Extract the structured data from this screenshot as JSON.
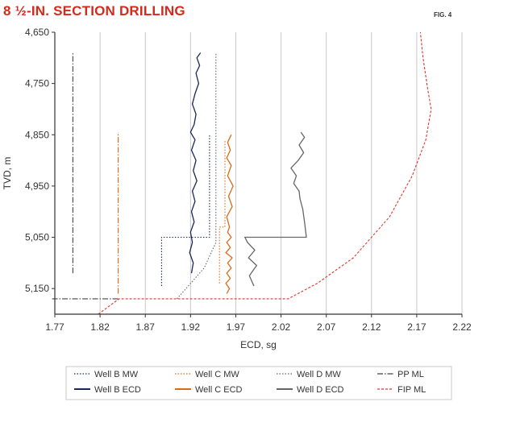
{
  "title": "8 ½-IN. SECTION DRILLING",
  "figure_label": "FIG. 4",
  "colors": {
    "title": "#d42a1c",
    "navy": "#1b2a55",
    "orange": "#d96a1a",
    "gray": "#666666",
    "red": "#e0342a",
    "dark": "#444444"
  },
  "chart_data": {
    "type": "line",
    "xlabel": "ECD, sg",
    "ylabel": "TVD, m",
    "xlim": [
      1.77,
      2.22
    ],
    "ylim": [
      4650,
      5200
    ],
    "y_inverted": true,
    "grid": "vertical",
    "x_ticks": [
      "1.77",
      "1.82",
      "1.87",
      "1.92",
      "1.97",
      "2.02",
      "2.07",
      "2.12",
      "2.17",
      "2.22"
    ],
    "y_ticks": [
      "4,650",
      "4,750",
      "4,850",
      "4,950",
      "5,050",
      "5,150"
    ],
    "legend_position": "bottom",
    "series": [
      {
        "name": "Well B MW",
        "color": "#1b2a55",
        "style": "dotted",
        "points": [
          [
            1.888,
            5145
          ],
          [
            1.888,
            5050
          ],
          [
            1.941,
            5050
          ],
          [
            1.941,
            4850
          ]
        ]
      },
      {
        "name": "Well C MW",
        "color": "#d96a1a",
        "style": "dotted",
        "points": [
          [
            1.952,
            5140
          ],
          [
            1.952,
            5030
          ],
          [
            1.958,
            5030
          ],
          [
            1.958,
            4860
          ]
        ]
      },
      {
        "name": "Well D MW",
        "color": "#666666",
        "style": "dotted",
        "points": [
          [
            1.905,
            5170
          ],
          [
            1.935,
            5110
          ],
          [
            1.948,
            5060
          ],
          [
            1.948,
            4690
          ]
        ]
      },
      {
        "name": "Well B ECD",
        "color": "#1b2a55",
        "style": "solid",
        "points": [
          [
            1.921,
            5120
          ],
          [
            1.923,
            5100
          ],
          [
            1.919,
            5080
          ],
          [
            1.922,
            5060
          ],
          [
            1.92,
            5040
          ],
          [
            1.924,
            5020
          ],
          [
            1.921,
            5000
          ],
          [
            1.925,
            4980
          ],
          [
            1.922,
            4960
          ],
          [
            1.927,
            4940
          ],
          [
            1.923,
            4920
          ],
          [
            1.926,
            4900
          ],
          [
            1.921,
            4880
          ],
          [
            1.925,
            4860
          ],
          [
            1.92,
            4845
          ],
          [
            1.924,
            4830
          ],
          [
            1.926,
            4810
          ],
          [
            1.922,
            4790
          ],
          [
            1.925,
            4770
          ],
          [
            1.929,
            4750
          ],
          [
            1.926,
            4730
          ],
          [
            1.93,
            4715
          ],
          [
            1.927,
            4700
          ],
          [
            1.931,
            4690
          ]
        ]
      },
      {
        "name": "Well C ECD",
        "color": "#d96a1a",
        "style": "solid",
        "points": [
          [
            1.96,
            5160
          ],
          [
            1.963,
            5150
          ],
          [
            1.959,
            5140
          ],
          [
            1.964,
            5130
          ],
          [
            1.96,
            5120
          ],
          [
            1.965,
            5110
          ],
          [
            1.961,
            5100
          ],
          [
            1.966,
            5090
          ],
          [
            1.959,
            5080
          ],
          [
            1.964,
            5070
          ],
          [
            1.96,
            5060
          ],
          [
            1.965,
            5050
          ],
          [
            1.961,
            5040
          ],
          [
            1.963,
            5030
          ],
          [
            1.96,
            5010
          ],
          [
            1.966,
            4990
          ],
          [
            1.962,
            4970
          ],
          [
            1.967,
            4950
          ],
          [
            1.961,
            4930
          ],
          [
            1.965,
            4910
          ],
          [
            1.96,
            4895
          ],
          [
            1.964,
            4880
          ],
          [
            1.961,
            4865
          ],
          [
            1.965,
            4850
          ]
        ]
      },
      {
        "name": "Well D ECD",
        "color": "#666666",
        "style": "solid",
        "points": [
          [
            1.99,
            5145
          ],
          [
            1.985,
            5125
          ],
          [
            1.993,
            5105
          ],
          [
            1.984,
            5090
          ],
          [
            1.991,
            5075
          ],
          [
            1.983,
            5060
          ],
          [
            1.98,
            5050
          ],
          [
            2.048,
            5050
          ],
          [
            2.046,
            5020
          ],
          [
            2.044,
            4995
          ],
          [
            2.041,
            4975
          ],
          [
            2.04,
            4960
          ],
          [
            2.034,
            4945
          ],
          [
            2.037,
            4930
          ],
          [
            2.031,
            4915
          ],
          [
            2.039,
            4900
          ],
          [
            2.045,
            4885
          ],
          [
            2.04,
            4870
          ],
          [
            2.046,
            4855
          ],
          [
            2.042,
            4845
          ]
        ]
      },
      {
        "name": "PP ML",
        "color": "#444444",
        "style": "dashdot",
        "points": [
          [
            1.79,
            5120
          ],
          [
            1.79,
            4690
          ]
        ]
      },
      {
        "name": "FIP ML",
        "color": "#e0342a",
        "style": "dashed",
        "points": [
          [
            1.818,
            5200
          ],
          [
            1.841,
            5170
          ],
          [
            2.028,
            5170
          ],
          [
            2.06,
            5140
          ],
          [
            2.1,
            5090
          ],
          [
            2.14,
            5010
          ],
          [
            2.165,
            4930
          ],
          [
            2.18,
            4860
          ],
          [
            2.186,
            4800
          ],
          [
            2.182,
            4760
          ],
          [
            2.177,
            4700
          ],
          [
            2.174,
            4650
          ]
        ]
      },
      {
        "name": "",
        "color": "#444444",
        "style": "dashdot",
        "points": [
          [
            1.767,
            5170
          ],
          [
            1.841,
            5170
          ]
        ]
      },
      {
        "name": "",
        "color": "#d96a1a",
        "style": "dashdot",
        "points": [
          [
            1.84,
            5160
          ],
          [
            1.84,
            4845
          ]
        ]
      }
    ]
  }
}
